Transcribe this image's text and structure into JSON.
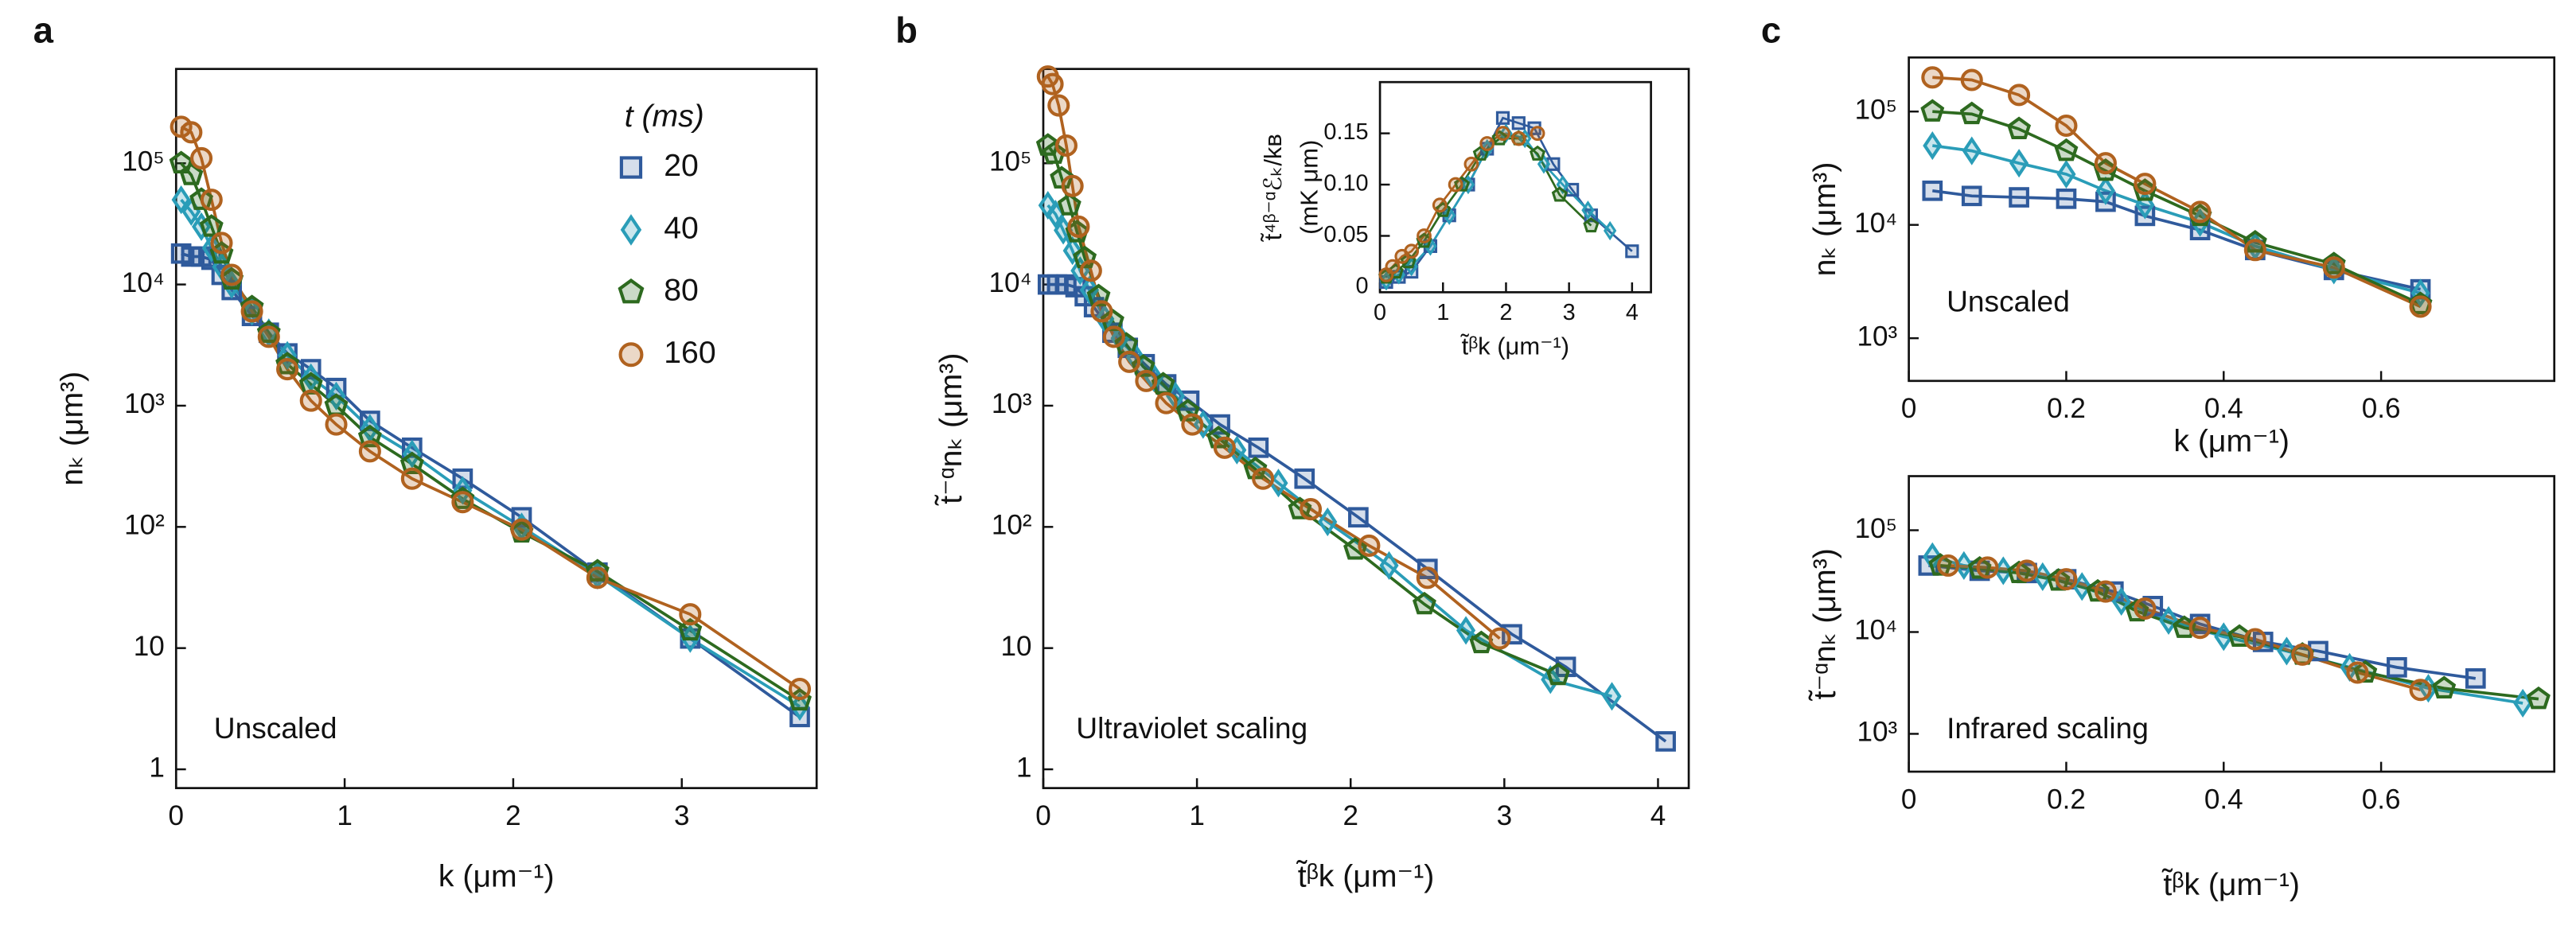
{
  "chart_data": [
    {
      "type": "line",
      "label": "a",
      "x_label": "k (μm⁻¹)",
      "y_label": "nₖ (μm³)",
      "annotation": "Unscaled",
      "ylog": true,
      "xlim": [
        0,
        3.8
      ],
      "ylim": [
        0.7,
        600000
      ],
      "xticks": [
        0,
        1,
        2,
        3
      ],
      "yticks": [
        1,
        10,
        {
          "value": 100,
          "label": "10²"
        },
        {
          "value": 1000,
          "label": "10³"
        },
        {
          "value": 10000,
          "label": "10⁴"
        },
        {
          "value": 100000,
          "label": "10⁵"
        }
      ],
      "legend": "upper right",
      "legend_title": "t (ms)",
      "x": [
        0.03,
        0.09,
        0.15,
        0.21,
        0.27,
        0.33,
        0.45,
        0.55,
        0.66,
        0.8,
        0.95,
        1.15,
        1.4,
        1.7,
        2.05,
        2.5,
        3.05,
        3.7
      ],
      "series": [
        {
          "name": "20",
          "color": "#2f5a9c",
          "marker": "square",
          "values": [
            18000,
            17000,
            17000,
            16000,
            12000,
            9000,
            5500,
            4000,
            2700,
            2000,
            1400,
            750,
            450,
            250,
            120,
            42,
            12,
            2.7
          ]
        },
        {
          "name": "40",
          "color": "#2a9db8",
          "marker": "diamond",
          "values": [
            50000,
            40000,
            30000,
            20000,
            14000,
            10000,
            6000,
            4000,
            2600,
            1700,
            1200,
            650,
            400,
            200,
            100,
            40,
            12,
            3.3
          ]
        },
        {
          "name": "80",
          "color": "#2d6a1f",
          "marker": "pentagon",
          "values": [
            100000,
            80000,
            50000,
            30000,
            18000,
            11000,
            6500,
            4000,
            2200,
            1500,
            1000,
            550,
            330,
            170,
            90,
            43,
            14,
            3.7
          ]
        },
        {
          "name": "160",
          "color": "#b0621f",
          "marker": "circle",
          "values": [
            200000,
            180000,
            110000,
            50000,
            22000,
            12000,
            6000,
            3700,
            2000,
            1100,
            700,
            420,
            250,
            160,
            95,
            38,
            19,
            4.6
          ]
        }
      ]
    },
    {
      "type": "line",
      "label": "b",
      "x_label": "t̃ᵝk (μm⁻¹)",
      "y_label": "t̃⁻ᵅnₖ (μm³)",
      "annotation": "Ultraviolet scaling",
      "ylog": true,
      "xlim": [
        0,
        4.2
      ],
      "ylim": [
        0.7,
        600000
      ],
      "xticks": [
        0,
        1,
        2,
        3,
        4
      ],
      "yticks": [
        1,
        10,
        {
          "value": 100,
          "label": "10²"
        },
        {
          "value": 1000,
          "label": "10³"
        },
        {
          "value": 10000,
          "label": "10⁴"
        },
        {
          "value": 100000,
          "label": "10⁵"
        }
      ],
      "series": [
        {
          "color": "#2f5a9c",
          "marker": "square",
          "x": [
            0.03,
            0.09,
            0.15,
            0.21,
            0.27,
            0.33,
            0.45,
            0.55,
            0.66,
            0.8,
            0.95,
            1.15,
            1.4,
            1.7,
            2.05,
            2.5,
            3.05,
            3.4,
            4.05
          ],
          "values": [
            10000,
            10000,
            10000,
            9500,
            8000,
            6500,
            4000,
            3000,
            2200,
            1500,
            1100,
            700,
            450,
            250,
            120,
            45,
            13,
            7,
            1.7
          ]
        },
        {
          "color": "#2a9db8",
          "marker": "diamond",
          "x": [
            0.03,
            0.08,
            0.13,
            0.19,
            0.24,
            0.3,
            0.4,
            0.5,
            0.6,
            0.72,
            0.86,
            1.04,
            1.26,
            1.53,
            1.85,
            2.25,
            2.75,
            3.3,
            3.7
          ],
          "values": [
            45000,
            38000,
            28000,
            19000,
            13000,
            9000,
            5200,
            3600,
            2500,
            1700,
            1200,
            700,
            430,
            230,
            110,
            48,
            14,
            5.5,
            4
          ]
        },
        {
          "color": "#2d6a1f",
          "marker": "pentagon",
          "x": [
            0.03,
            0.07,
            0.12,
            0.17,
            0.22,
            0.27,
            0.36,
            0.45,
            0.54,
            0.65,
            0.78,
            0.94,
            1.14,
            1.38,
            1.67,
            2.03,
            2.48,
            2.85,
            3.35
          ],
          "values": [
            140000,
            120000,
            75000,
            45000,
            27000,
            16500,
            8000,
            5000,
            3200,
            2100,
            1500,
            900,
            540,
            300,
            140,
            65,
            23,
            11,
            6
          ]
        },
        {
          "color": "#b0621f",
          "marker": "circle",
          "x": [
            0.03,
            0.06,
            0.1,
            0.15,
            0.19,
            0.23,
            0.31,
            0.38,
            0.46,
            0.56,
            0.67,
            0.8,
            0.97,
            1.18,
            1.43,
            1.74,
            2.12,
            2.5,
            2.97
          ],
          "values": [
            520000,
            450000,
            300000,
            140000,
            65000,
            30000,
            13000,
            6000,
            3700,
            2300,
            1600,
            1050,
            700,
            450,
            250,
            140,
            70,
            38,
            12
          ]
        }
      ]
    },
    {
      "type": "line",
      "x_label": "t̃ᵝk (μm⁻¹)",
      "y_label": [
        "t̃⁴ᵝ⁻ᵅℰₖ/kʙ",
        "(mK μm)"
      ],
      "ylog": false,
      "xlim": [
        0,
        4.3
      ],
      "ylim": [
        -0.005,
        0.2
      ],
      "xticks": [
        0,
        1,
        2,
        3,
        4
      ],
      "yticks": [
        0,
        0.05,
        {
          "value": 0.1,
          "label": "0.10"
        },
        0.15
      ],
      "series": [
        {
          "color": "#2f5a9c",
          "marker": "square",
          "x": [
            0.1,
            0.3,
            0.5,
            0.8,
            1.1,
            1.4,
            1.7,
            1.95,
            2.2,
            2.45,
            2.75,
            3.05,
            3.35,
            4.0
          ],
          "values": [
            0.005,
            0.01,
            0.015,
            0.04,
            0.07,
            0.1,
            0.135,
            0.165,
            0.16,
            0.155,
            0.12,
            0.095,
            0.07,
            0.035
          ]
        },
        {
          "color": "#2a9db8",
          "marker": "diamond",
          "x": [
            0.1,
            0.3,
            0.5,
            0.8,
            1.1,
            1.4,
            1.7,
            2.0,
            2.3,
            2.6,
            2.9,
            3.3,
            3.65
          ],
          "values": [
            0.006,
            0.012,
            0.02,
            0.04,
            0.07,
            0.1,
            0.135,
            0.15,
            0.145,
            0.12,
            0.1,
            0.075,
            0.055
          ]
        },
        {
          "color": "#2d6a1f",
          "marker": "pentagon",
          "x": [
            0.1,
            0.25,
            0.45,
            0.7,
            1.0,
            1.3,
            1.6,
            1.9,
            2.2,
            2.5,
            2.85,
            3.35
          ],
          "values": [
            0.01,
            0.015,
            0.025,
            0.045,
            0.075,
            0.1,
            0.13,
            0.145,
            0.145,
            0.13,
            0.09,
            0.06
          ]
        },
        {
          "color": "#b0621f",
          "marker": "circle",
          "x": [
            0.1,
            0.2,
            0.35,
            0.5,
            0.7,
            0.95,
            1.2,
            1.45,
            1.7,
            1.95,
            2.2,
            2.5
          ],
          "values": [
            0.012,
            0.02,
            0.03,
            0.035,
            0.05,
            0.08,
            0.1,
            0.12,
            0.14,
            0.15,
            0.145,
            0.15
          ]
        }
      ]
    },
    {
      "type": "line",
      "label": "c",
      "x_label": "k (μm⁻¹)",
      "y_label": "nₖ (μm³)",
      "annotation": "Unscaled",
      "ylog": true,
      "xlim": [
        0,
        0.82
      ],
      "ylim": [
        420,
        300000
      ],
      "xticks": [
        0,
        0.2,
        0.4,
        0.6
      ],
      "yticks": [
        {
          "value": 1000,
          "label": "10³"
        },
        {
          "value": 10000,
          "label": "10⁴"
        },
        {
          "value": 100000,
          "label": "10⁵"
        }
      ],
      "x": [
        0.03,
        0.08,
        0.14,
        0.2,
        0.25,
        0.3,
        0.37,
        0.44,
        0.54,
        0.65
      ],
      "series": [
        {
          "color": "#2f5a9c",
          "marker": "square",
          "values": [
            20000,
            18000,
            17500,
            17000,
            16000,
            12000,
            9000,
            6000,
            4000,
            2700
          ]
        },
        {
          "color": "#2a9db8",
          "marker": "diamond",
          "values": [
            50000,
            45000,
            35000,
            28000,
            20000,
            15000,
            10500,
            6500,
            4000,
            2500
          ]
        },
        {
          "color": "#2d6a1f",
          "marker": "pentagon",
          "values": [
            100000,
            95000,
            70000,
            45000,
            30000,
            20000,
            12000,
            7000,
            4500,
            2000
          ]
        },
        {
          "color": "#b0621f",
          "marker": "circle",
          "values": [
            200000,
            190000,
            140000,
            75000,
            35000,
            23000,
            13000,
            6000,
            4200,
            1900
          ]
        }
      ]
    },
    {
      "type": "line",
      "x_label": "t̃ᵝk (μm⁻¹)",
      "y_label": "t̃⁻ᵅnₖ (μm³)",
      "annotation": "Infrared scaling",
      "ylog": true,
      "xlim": [
        0,
        0.82
      ],
      "ylim": [
        425,
        340000
      ],
      "xticks": [
        0,
        0.2,
        0.4,
        0.6
      ],
      "yticks": [
        {
          "value": 1000,
          "label": "10³"
        },
        {
          "value": 10000,
          "label": "10⁴"
        },
        {
          "value": 100000,
          "label": "10⁵"
        }
      ],
      "series": [
        {
          "color": "#2f5a9c",
          "marker": "square",
          "x": [
            0.025,
            0.09,
            0.15,
            0.2,
            0.26,
            0.31,
            0.37,
            0.45,
            0.52,
            0.62,
            0.72
          ],
          "values": [
            45000,
            40000,
            38000,
            33000,
            25000,
            18000,
            12000,
            8000,
            6500,
            4500,
            3500
          ]
        },
        {
          "color": "#2a9db8",
          "marker": "diamond",
          "x": [
            0.03,
            0.07,
            0.12,
            0.17,
            0.22,
            0.27,
            0.33,
            0.4,
            0.48,
            0.56,
            0.66,
            0.78
          ],
          "values": [
            55000,
            45000,
            40000,
            35000,
            28000,
            20000,
            13000,
            9000,
            6500,
            4500,
            2800,
            2000
          ]
        },
        {
          "color": "#2d6a1f",
          "marker": "pentagon",
          "x": [
            0.04,
            0.09,
            0.14,
            0.19,
            0.24,
            0.29,
            0.35,
            0.42,
            0.5,
            0.58,
            0.68,
            0.8
          ],
          "values": [
            45000,
            42000,
            38000,
            32000,
            25000,
            16000,
            11000,
            9000,
            6000,
            4000,
            2800,
            2200
          ]
        },
        {
          "color": "#b0621f",
          "marker": "circle",
          "x": [
            0.05,
            0.1,
            0.15,
            0.2,
            0.25,
            0.3,
            0.37,
            0.44,
            0.5,
            0.57,
            0.65
          ],
          "values": [
            45000,
            43000,
            40000,
            33000,
            25000,
            17000,
            11000,
            8500,
            6000,
            4000,
            2700
          ]
        }
      ]
    }
  ]
}
